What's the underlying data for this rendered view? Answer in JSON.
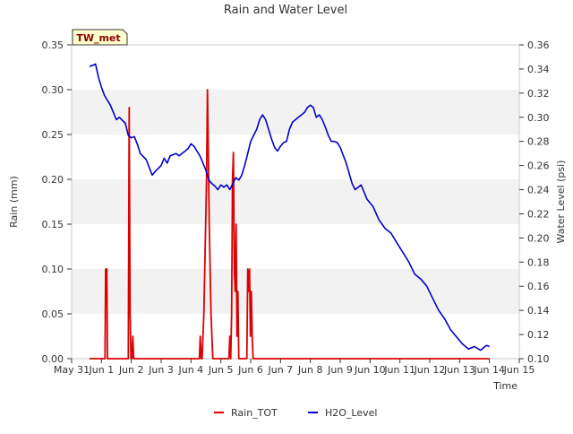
{
  "chart_data": {
    "type": "line",
    "title": "Rain and Water Level",
    "badge": "TW_met",
    "xlabel": "Time",
    "ylabel_left": "Rain (mm)",
    "ylabel_right": "Water Level (psi)",
    "xlim": [
      0,
      15
    ],
    "ylim_left": [
      0,
      0.35
    ],
    "ylim_right": [
      0.1,
      0.36
    ],
    "x_ticks": [
      0,
      1,
      2,
      3,
      4,
      5,
      6,
      7,
      8,
      9,
      10,
      11,
      12,
      13,
      14,
      15
    ],
    "x_tick_labels": [
      "May 31",
      "Jun 1",
      "Jun 2",
      "Jun 3",
      "Jun 4",
      "Jun 5",
      "Jun 6",
      "Jun 7",
      "Jun 8",
      "Jun 9",
      "Jun 10",
      "Jun 11",
      "Jun 12",
      "Jun 13",
      "Jun 14",
      "Jun 15"
    ],
    "y_ticks_left": [
      0.0,
      0.05,
      0.1,
      0.15,
      0.2,
      0.25,
      0.3,
      0.35
    ],
    "y_tick_labels_left": [
      "0.00",
      "0.05",
      "0.10",
      "0.15",
      "0.20",
      "0.25",
      "0.30",
      "0.35"
    ],
    "y_ticks_right": [
      0.1,
      0.12,
      0.14,
      0.16,
      0.18,
      0.2,
      0.22,
      0.24,
      0.26,
      0.28,
      0.3,
      0.32,
      0.34,
      0.36
    ],
    "y_tick_labels_right": [
      "0.10",
      "0.12",
      "0.14",
      "0.16",
      "0.18",
      "0.20",
      "0.22",
      "0.24",
      "0.26",
      "0.28",
      "0.30",
      "0.32",
      "0.34",
      "0.36"
    ],
    "grid": "horizontal-bands",
    "legend_position": "bottom-center",
    "series": [
      {
        "name": "Rain_TOT",
        "axis": "left",
        "color": "#dd0000",
        "x": [
          0.6,
          1.12,
          1.14,
          1.16,
          1.18,
          1.2,
          1.22,
          1.9,
          1.93,
          1.96,
          1.99,
          2.02,
          2.05,
          2.08,
          2.11,
          2.14,
          2.17,
          4.28,
          4.31,
          4.34,
          4.37,
          4.4,
          4.43,
          4.46,
          4.49,
          4.52,
          4.55,
          4.58,
          4.61,
          4.64,
          4.67,
          4.7,
          4.73,
          4.76,
          4.79,
          4.82,
          4.85,
          4.88,
          4.91,
          4.94,
          4.97,
          5.0,
          5.03,
          5.06,
          5.09,
          5.12,
          5.15,
          5.18,
          5.21,
          5.24,
          5.27,
          5.3,
          5.33,
          5.36,
          5.39,
          5.42,
          5.45,
          5.48,
          5.51,
          5.54,
          5.57,
          5.6,
          5.63,
          5.66,
          5.69,
          5.72,
          5.75,
          5.78,
          5.81,
          5.84,
          5.87,
          5.9,
          5.93,
          5.96,
          5.99,
          6.02,
          6.05,
          6.08,
          6.11,
          6.14,
          6.17,
          6.2,
          14.0
        ],
        "y": [
          0.0,
          0.0,
          0.1,
          0.1,
          0.1,
          0.0,
          0.0,
          0.0,
          0.28,
          0.05,
          0.0,
          0.0,
          0.025,
          0.0,
          0.0,
          0.0,
          0.0,
          0.0,
          0.025,
          0.0,
          0.0,
          0.025,
          0.05,
          0.1,
          0.15,
          0.2,
          0.3,
          0.23,
          0.15,
          0.1,
          0.05,
          0.025,
          0.0,
          0.0,
          0.0,
          0.0,
          0.0,
          0.0,
          0.0,
          0.0,
          0.0,
          0.0,
          0.0,
          0.0,
          0.0,
          0.0,
          0.0,
          0.0,
          0.0,
          0.0,
          0.0,
          0.025,
          0.0,
          0.05,
          0.2,
          0.23,
          0.1,
          0.075,
          0.15,
          0.025,
          0.075,
          0.0,
          0.0,
          0.0,
          0.0,
          0.0,
          0.0,
          0.0,
          0.0,
          0.0,
          0.0,
          0.1,
          0.075,
          0.1,
          0.025,
          0.075,
          0.025,
          0.0,
          0.0,
          0.0,
          0.0,
          0.0,
          0.0
        ]
      },
      {
        "name": "H2O_Level",
        "axis": "right",
        "color": "#0000cc",
        "x": [
          0.6,
          0.8,
          0.9,
          1.0,
          1.1,
          1.3,
          1.5,
          1.6,
          1.8,
          1.9,
          2.0,
          2.1,
          2.2,
          2.3,
          2.5,
          2.7,
          2.8,
          3.0,
          3.1,
          3.2,
          3.3,
          3.5,
          3.6,
          3.8,
          3.9,
          4.0,
          4.1,
          4.2,
          4.3,
          4.4,
          4.5,
          4.6,
          4.7,
          4.8,
          4.9,
          5.0,
          5.1,
          5.2,
          5.3,
          5.4,
          5.5,
          5.6,
          5.7,
          5.8,
          5.9,
          6.0,
          6.1,
          6.2,
          6.3,
          6.4,
          6.5,
          6.6,
          6.7,
          6.8,
          6.9,
          7.0,
          7.1,
          7.2,
          7.3,
          7.4,
          7.5,
          7.6,
          7.7,
          7.8,
          7.9,
          8.0,
          8.1,
          8.2,
          8.3,
          8.4,
          8.5,
          8.6,
          8.7,
          8.8,
          8.9,
          9.0,
          9.2,
          9.4,
          9.5,
          9.7,
          9.9,
          10.1,
          10.3,
          10.5,
          10.7,
          10.9,
          11.1,
          11.3,
          11.5,
          11.7,
          11.9,
          12.1,
          12.3,
          12.5,
          12.7,
          12.9,
          13.1,
          13.3,
          13.5,
          13.7,
          13.9,
          14.0
        ],
        "y": [
          0.342,
          0.344,
          0.333,
          0.325,
          0.318,
          0.31,
          0.298,
          0.3,
          0.295,
          0.285,
          0.283,
          0.284,
          0.278,
          0.27,
          0.265,
          0.252,
          0.255,
          0.26,
          0.266,
          0.262,
          0.268,
          0.27,
          0.268,
          0.272,
          0.274,
          0.278,
          0.276,
          0.272,
          0.268,
          0.262,
          0.256,
          0.248,
          0.245,
          0.243,
          0.24,
          0.244,
          0.242,
          0.244,
          0.24,
          0.245,
          0.25,
          0.248,
          0.252,
          0.26,
          0.27,
          0.28,
          0.285,
          0.29,
          0.298,
          0.302,
          0.298,
          0.29,
          0.282,
          0.275,
          0.272,
          0.276,
          0.279,
          0.28,
          0.29,
          0.296,
          0.298,
          0.3,
          0.302,
          0.304,
          0.308,
          0.31,
          0.308,
          0.3,
          0.302,
          0.298,
          0.292,
          0.285,
          0.28,
          0.28,
          0.279,
          0.275,
          0.262,
          0.245,
          0.24,
          0.244,
          0.232,
          0.226,
          0.215,
          0.208,
          0.204,
          0.196,
          0.188,
          0.18,
          0.17,
          0.166,
          0.16,
          0.15,
          0.14,
          0.133,
          0.124,
          0.118,
          0.112,
          0.108,
          0.11,
          0.107,
          0.111,
          0.11
        ]
      }
    ]
  }
}
